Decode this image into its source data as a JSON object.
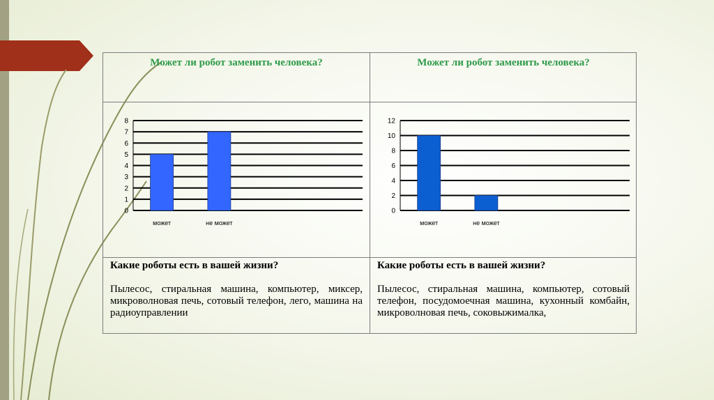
{
  "colors": {
    "title": "#2e9a49",
    "bar": "#3366ff",
    "accent": "#a0301a",
    "grid": "#000000"
  },
  "table": {
    "left": {
      "question_title": "Может ли робот заменить человека?",
      "robots_question": "Какие роботы есть в вашей жизни?",
      "robots_answer": "Пылесос, стиральная машина, компьютер, миксер, микроволновая печь, сотовый телефон, лего, машина на радиоуправлении"
    },
    "right": {
      "question_title": "Может ли робот заменить человека?",
      "robots_question": "Какие роботы есть в вашей жизни?",
      "robots_answer": "Пылесос, стиральная машина, компьютер, сотовый телефон, посудомоечная машина, кухонный комбайн, микроволновая печь, соковыжималка,"
    }
  },
  "chart_data": [
    {
      "type": "bar",
      "categories": [
        "может",
        "не может"
      ],
      "values": [
        5,
        7
      ],
      "ylim": [
        0,
        8
      ],
      "yticks": [
        0,
        1,
        2,
        3,
        4,
        5,
        6,
        7,
        8
      ],
      "grid": true,
      "bar_color": "#3366ff"
    },
    {
      "type": "bar",
      "categories": [
        "может",
        "не может"
      ],
      "values": [
        10,
        2
      ],
      "ylim": [
        0,
        12
      ],
      "yticks": [
        0,
        2,
        4,
        6,
        8,
        10,
        12
      ],
      "grid": true,
      "bar_color": "#0b5fd1"
    }
  ]
}
